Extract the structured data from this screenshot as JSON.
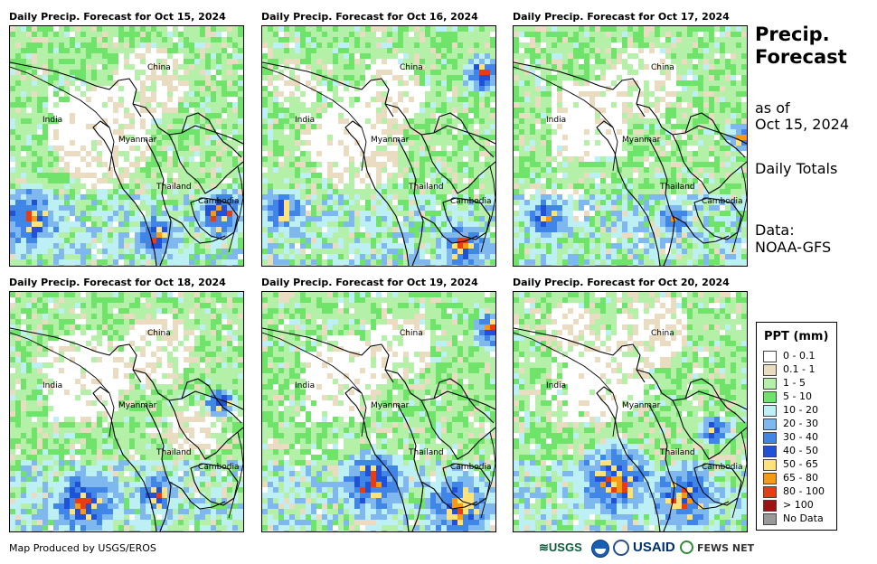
{
  "panels": [
    {
      "title": "Daily Precip. Forecast for Oct 15, 2024"
    },
    {
      "title": "Daily Precip. Forecast for Oct 16, 2024"
    },
    {
      "title": "Daily Precip. Forecast for Oct 17, 2024"
    },
    {
      "title": "Daily Precip. Forecast for Oct 18, 2024"
    },
    {
      "title": "Daily Precip. Forecast for Oct 19, 2024"
    },
    {
      "title": "Daily Precip. Forecast for Oct 20, 2024"
    }
  ],
  "map_labels": {
    "china": "China",
    "india": "India",
    "myanmar": "Myanmar",
    "thailand": "Thailand",
    "cambodia": "Cambodia"
  },
  "side": {
    "title_line1": "Precip.",
    "title_line2": "Forecast",
    "as_of": "as of",
    "date": "Oct 15, 2024",
    "totals": "Daily Totals",
    "data_label": "Data:",
    "data_source": "NOAA-GFS"
  },
  "legend": {
    "title": "PPT (mm)",
    "items": [
      {
        "label": "0 - 0.1",
        "color": "#ffffff"
      },
      {
        "label": "0.1 - 1",
        "color": "#eadcc0"
      },
      {
        "label": "1 - 5",
        "color": "#b4f0a8"
      },
      {
        "label": "5 - 10",
        "color": "#6fe36a"
      },
      {
        "label": "10 - 20",
        "color": "#bdf0f5"
      },
      {
        "label": "20 - 30",
        "color": "#7fb8ee"
      },
      {
        "label": "30 - 40",
        "color": "#3f86e6"
      },
      {
        "label": "40 - 50",
        "color": "#1f52d6"
      },
      {
        "label": "50 - 65",
        "color": "#fde37a"
      },
      {
        "label": "65 - 80",
        "color": "#f59a12"
      },
      {
        "label": "80 - 100",
        "color": "#e83c12"
      },
      {
        "label": "> 100",
        "color": "#9c1212"
      },
      {
        "label": "No Data",
        "color": "#999999"
      }
    ]
  },
  "footer": {
    "credit": "Map Produced by USGS/EROS"
  },
  "logos": {
    "usgs": "≋USGS",
    "usaid": "USAID",
    "fews": "FEWS NET"
  }
}
